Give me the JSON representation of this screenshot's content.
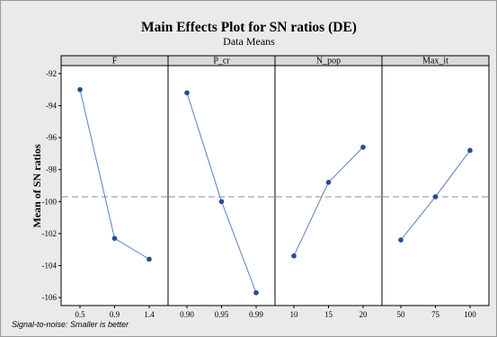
{
  "footnote": "Signal-to-noise: Smaller is better",
  "chart_data": {
    "type": "line",
    "title": "Main Effects Plot for SN ratios (DE)",
    "subtitle": "Data Means",
    "ylabel": "Mean of SN ratios",
    "ylim": [
      -106.5,
      -91.5
    ],
    "yticks": [
      -92,
      -94,
      -96,
      -98,
      -100,
      -102,
      -104,
      -106
    ],
    "reference_line": -99.7,
    "grid": false,
    "line_color": "#5b7fbd",
    "marker_color": "#1f4e96",
    "panels": [
      {
        "name": "F",
        "categories": [
          "0.5",
          "0.9",
          "1.4"
        ],
        "values": [
          -93.0,
          -102.3,
          -103.6
        ]
      },
      {
        "name": "P_cr",
        "categories": [
          "0.90",
          "0.95",
          "0.99"
        ],
        "values": [
          -93.2,
          -100.0,
          -105.7
        ]
      },
      {
        "name": "N_pop",
        "categories": [
          "10",
          "15",
          "20"
        ],
        "values": [
          -103.4,
          -98.8,
          -96.6
        ]
      },
      {
        "name": "Max_it",
        "categories": [
          "50",
          "75",
          "100"
        ],
        "values": [
          -102.4,
          -99.7,
          -96.8
        ]
      }
    ]
  }
}
